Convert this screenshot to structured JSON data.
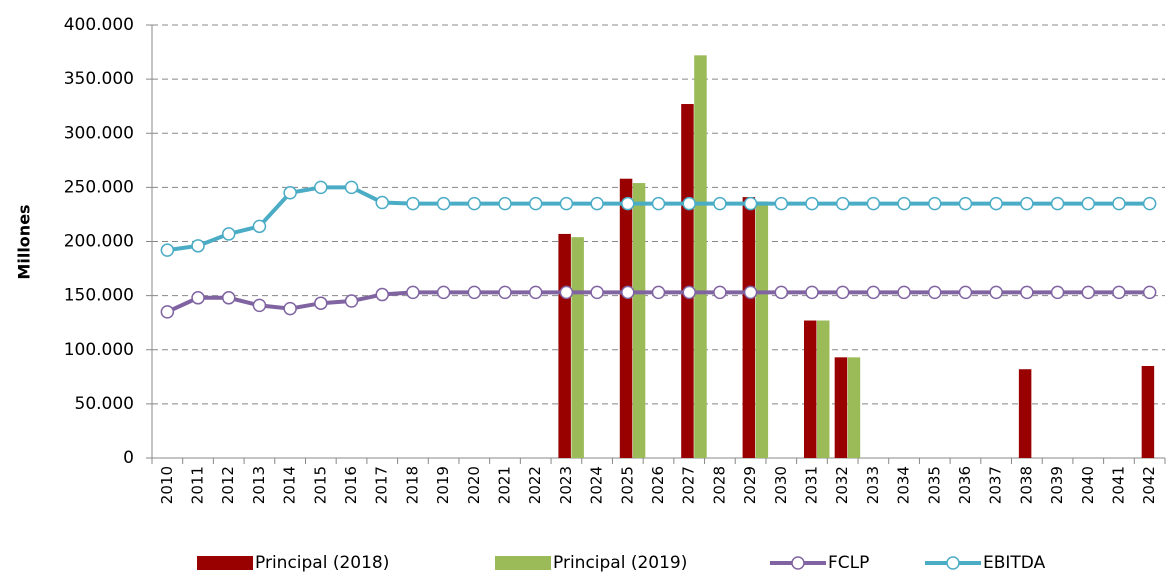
{
  "chart_data": {
    "type": "bar-line",
    "y_label": "Millones",
    "categories": [
      "2010",
      "2011",
      "2012",
      "2013",
      "2014",
      "2015",
      "2016",
      "2017",
      "2018",
      "2019",
      "2020",
      "2021",
      "2022",
      "2023",
      "2024",
      "2025",
      "2026",
      "2027",
      "2028",
      "2029",
      "2030",
      "2031",
      "2032",
      "2033",
      "2034",
      "2035",
      "2036",
      "2037",
      "2038",
      "2039",
      "2040",
      "2041",
      "2042"
    ],
    "ylim": [
      0,
      400000
    ],
    "yticks": [
      0,
      {
        "value": 50000,
        "label": "50.000"
      },
      {
        "value": 100000,
        "label": "100.000"
      },
      {
        "value": 150000,
        "label": "150.000"
      },
      {
        "value": 200000,
        "label": "200.000"
      },
      {
        "value": 250000,
        "label": "250.000"
      },
      {
        "value": 300000,
        "label": "300.000"
      },
      {
        "value": 350000,
        "label": "350.000"
      },
      {
        "value": 400000,
        "label": "400.000"
      }
    ],
    "grid": true,
    "legend": "bottom",
    "series": [
      {
        "name": "Principal (2018)",
        "type": "bar",
        "color": "#990000",
        "values": [
          null,
          null,
          null,
          null,
          null,
          null,
          null,
          null,
          null,
          null,
          null,
          null,
          null,
          207000,
          null,
          258000,
          null,
          327000,
          null,
          241000,
          null,
          127000,
          93000,
          null,
          null,
          null,
          null,
          null,
          82000,
          null,
          null,
          null,
          85000
        ]
      },
      {
        "name": "Principal (2019)",
        "type": "bar",
        "color": "#9bbb59",
        "values": [
          null,
          null,
          null,
          null,
          null,
          null,
          null,
          null,
          null,
          null,
          null,
          null,
          null,
          204000,
          null,
          254000,
          null,
          372000,
          null,
          237000,
          null,
          127000,
          93000,
          null,
          null,
          null,
          null,
          null,
          null,
          null,
          null,
          null,
          null
        ]
      },
      {
        "name": "FCLP",
        "type": "line",
        "color": "#8064a2",
        "values": [
          135000,
          148000,
          148000,
          141000,
          138000,
          143000,
          145000,
          151000,
          153000,
          153000,
          153000,
          153000,
          153000,
          153000,
          153000,
          153000,
          153000,
          153000,
          153000,
          153000,
          153000,
          153000,
          153000,
          153000,
          153000,
          153000,
          153000,
          153000,
          153000,
          153000,
          153000,
          153000,
          153000
        ]
      },
      {
        "name": "EBITDA",
        "type": "line",
        "color": "#4bacc6",
        "values": [
          192000,
          196000,
          207000,
          214000,
          245000,
          250000,
          250000,
          236000,
          235000,
          235000,
          235000,
          235000,
          235000,
          235000,
          235000,
          235000,
          235000,
          235000,
          235000,
          235000,
          235000,
          235000,
          235000,
          235000,
          235000,
          235000,
          235000,
          235000,
          235000,
          235000,
          235000,
          235000,
          235000
        ]
      }
    ]
  }
}
